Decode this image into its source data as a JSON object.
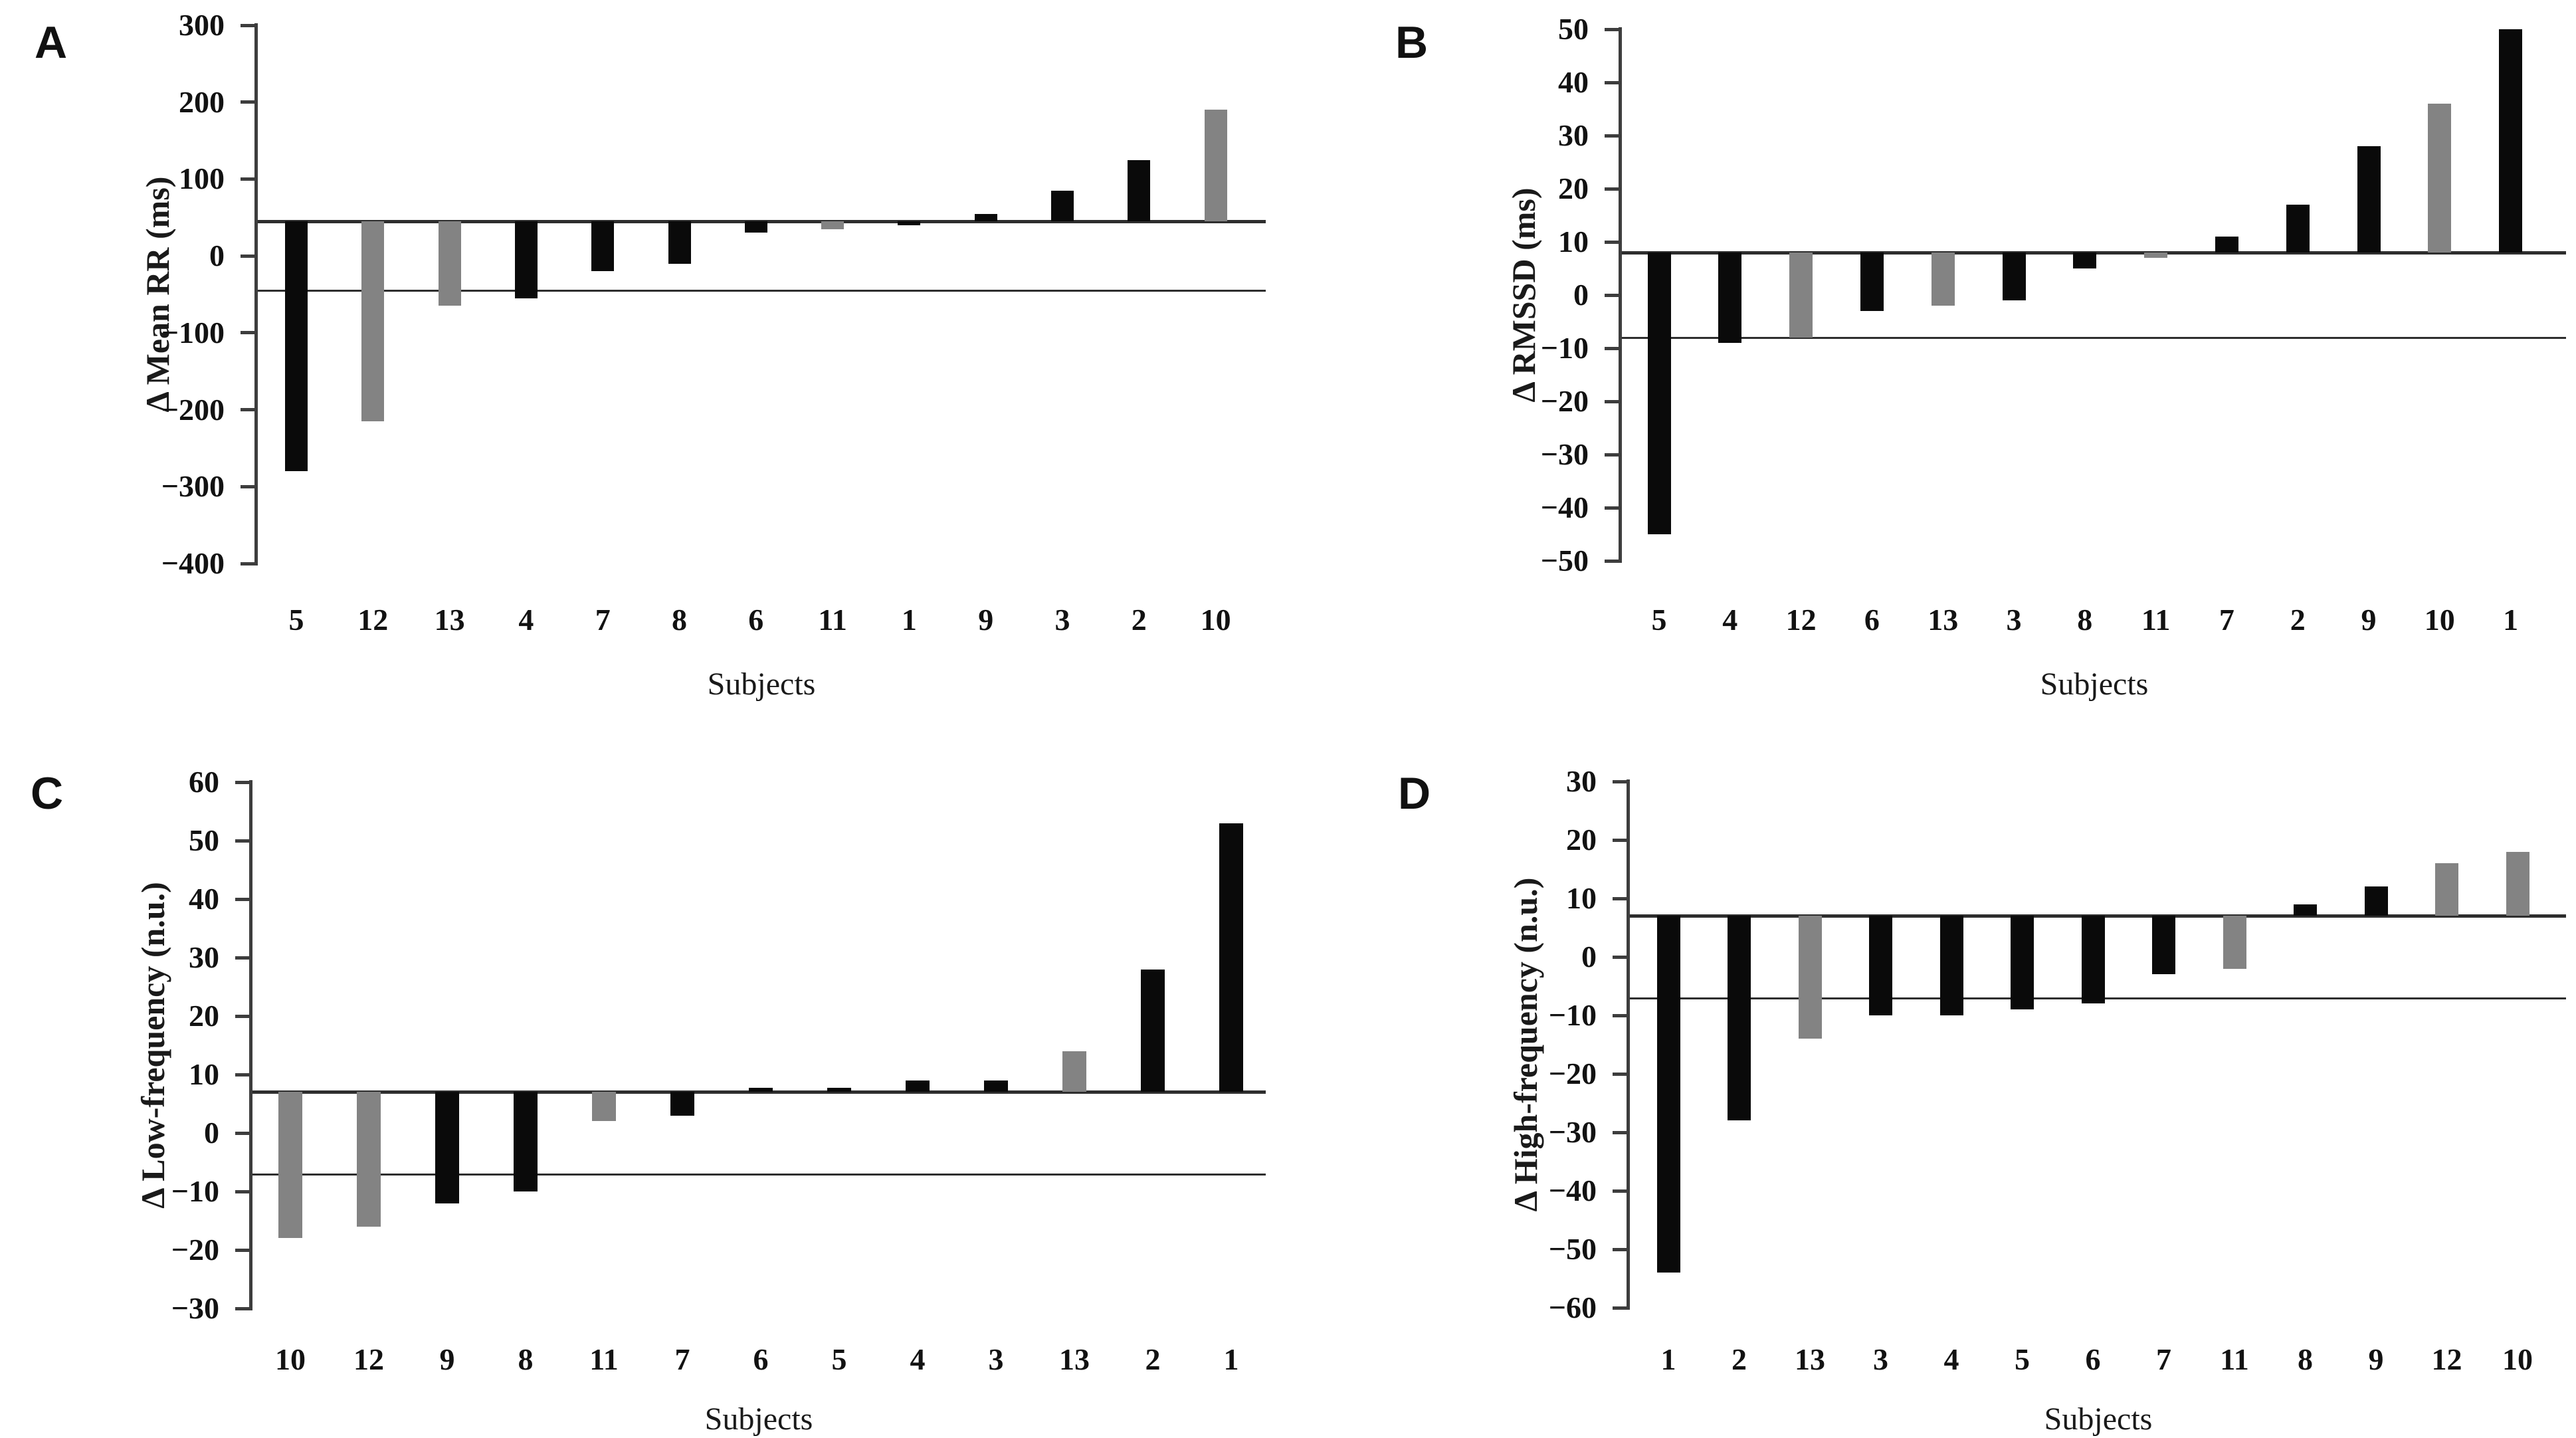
{
  "figure": {
    "background": "#ffffff",
    "bar_colors": {
      "black": "#0a0a0a",
      "gray": "#838383"
    },
    "axis_color": "#3d3d3d",
    "note": "Individual subject bar charts; bars emanate from the upper reference line; a pair of thin horizontal reference lines marks the trivial-change band in each panel."
  },
  "chart_data": [
    {
      "type": "bar",
      "panel_label": "A",
      "ylabel": "Δ Mean RR (ms)",
      "xlabel": "Subjects",
      "ylim": [
        -400,
        300
      ],
      "yticks": [
        300,
        200,
        100,
        0,
        -100,
        -200,
        -300,
        -400
      ],
      "ref_upper": 45,
      "ref_lower": -45,
      "grid": false,
      "legend": "none",
      "bars": [
        {
          "subject": "5",
          "value": -280,
          "color": "black"
        },
        {
          "subject": "12",
          "value": -215,
          "color": "gray"
        },
        {
          "subject": "13",
          "value": -65,
          "color": "gray"
        },
        {
          "subject": "4",
          "value": -55,
          "color": "black"
        },
        {
          "subject": "7",
          "value": -20,
          "color": "black"
        },
        {
          "subject": "8",
          "value": -10,
          "color": "black"
        },
        {
          "subject": "6",
          "value": 30,
          "color": "black"
        },
        {
          "subject": "11",
          "value": 35,
          "color": "gray"
        },
        {
          "subject": "1",
          "value": 40,
          "color": "black"
        },
        {
          "subject": "9",
          "value": 55,
          "color": "black"
        },
        {
          "subject": "3",
          "value": 85,
          "color": "black"
        },
        {
          "subject": "2",
          "value": 125,
          "color": "black"
        },
        {
          "subject": "10",
          "value": 190,
          "color": "gray"
        }
      ]
    },
    {
      "type": "bar",
      "panel_label": "B",
      "ylabel": "Δ RMSSD (ms)",
      "xlabel": "Subjects",
      "ylim": [
        -50,
        50
      ],
      "yticks": [
        50,
        40,
        30,
        20,
        10,
        0,
        -10,
        -20,
        -30,
        -40,
        -50
      ],
      "ref_upper": 8,
      "ref_lower": -8,
      "grid": false,
      "legend": "none",
      "bars": [
        {
          "subject": "5",
          "value": -45,
          "color": "black"
        },
        {
          "subject": "4",
          "value": -9,
          "color": "black"
        },
        {
          "subject": "12",
          "value": -8,
          "color": "gray"
        },
        {
          "subject": "6",
          "value": -3,
          "color": "black"
        },
        {
          "subject": "13",
          "value": -2,
          "color": "gray"
        },
        {
          "subject": "3",
          "value": -1,
          "color": "black"
        },
        {
          "subject": "8",
          "value": 5,
          "color": "black"
        },
        {
          "subject": "11",
          "value": 7,
          "color": "gray"
        },
        {
          "subject": "7",
          "value": 11,
          "color": "black"
        },
        {
          "subject": "2",
          "value": 17,
          "color": "black"
        },
        {
          "subject": "9",
          "value": 28,
          "color": "black"
        },
        {
          "subject": "10",
          "value": 36,
          "color": "gray"
        },
        {
          "subject": "1",
          "value": 50,
          "color": "black"
        }
      ]
    },
    {
      "type": "bar",
      "panel_label": "C",
      "ylabel": "Δ Low-frequency (n.u.)",
      "xlabel": "Subjects",
      "ylim": [
        -30,
        60
      ],
      "yticks": [
        60,
        50,
        40,
        30,
        20,
        10,
        0,
        -10,
        -20,
        -30
      ],
      "ref_upper": 7,
      "ref_lower": -7,
      "grid": false,
      "legend": "none",
      "bars": [
        {
          "subject": "10",
          "value": -18,
          "color": "gray"
        },
        {
          "subject": "12",
          "value": -16,
          "color": "gray"
        },
        {
          "subject": "9",
          "value": -12,
          "color": "black"
        },
        {
          "subject": "8",
          "value": -10,
          "color": "black"
        },
        {
          "subject": "11",
          "value": 2,
          "color": "gray"
        },
        {
          "subject": "7",
          "value": 3,
          "color": "black"
        },
        {
          "subject": "6",
          "value": 7,
          "color": "black"
        },
        {
          "subject": "5",
          "value": 7,
          "color": "black"
        },
        {
          "subject": "4",
          "value": 9,
          "color": "black"
        },
        {
          "subject": "3",
          "value": 9,
          "color": "black"
        },
        {
          "subject": "13",
          "value": 14,
          "color": "gray"
        },
        {
          "subject": "2",
          "value": 28,
          "color": "black"
        },
        {
          "subject": "1",
          "value": 53,
          "color": "black"
        }
      ]
    },
    {
      "type": "bar",
      "panel_label": "D",
      "ylabel": "Δ High-frequency (n.u.)",
      "xlabel": "Subjects",
      "ylim": [
        -60,
        30
      ],
      "yticks": [
        30,
        20,
        10,
        0,
        -10,
        -20,
        -30,
        -40,
        -50,
        -60
      ],
      "ref_upper": 7,
      "ref_lower": -7,
      "grid": false,
      "legend": "none",
      "bars": [
        {
          "subject": "1",
          "value": -54,
          "color": "black"
        },
        {
          "subject": "2",
          "value": -28,
          "color": "black"
        },
        {
          "subject": "13",
          "value": -14,
          "color": "gray"
        },
        {
          "subject": "3",
          "value": -10,
          "color": "black"
        },
        {
          "subject": "4",
          "value": -10,
          "color": "black"
        },
        {
          "subject": "5",
          "value": -9,
          "color": "black"
        },
        {
          "subject": "6",
          "value": -8,
          "color": "black"
        },
        {
          "subject": "7",
          "value": -3,
          "color": "black"
        },
        {
          "subject": "11",
          "value": -2,
          "color": "gray"
        },
        {
          "subject": "8",
          "value": 9,
          "color": "black"
        },
        {
          "subject": "9",
          "value": 12,
          "color": "black"
        },
        {
          "subject": "12",
          "value": 16,
          "color": "gray"
        },
        {
          "subject": "10",
          "value": 18,
          "color": "gray"
        }
      ]
    }
  ]
}
